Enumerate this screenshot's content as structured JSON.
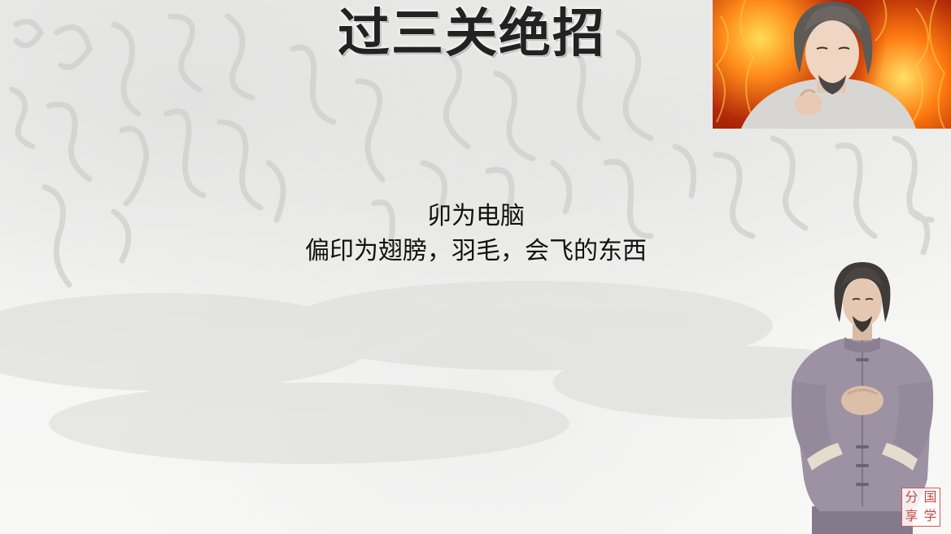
{
  "slide": {
    "title": "过三关绝招",
    "lines": [
      "卯为电脑",
      "偏印为翅膀，羽毛，会飞的东西"
    ]
  },
  "logo": {
    "chars": [
      "分",
      "国",
      "享",
      "学"
    ],
    "color": "#d14545"
  },
  "colors": {
    "background": "#f4f4f3",
    "title_text": "#222222",
    "body_text": "#111111",
    "fire_accent": "#e55a10",
    "robe": "#9d92a3"
  }
}
